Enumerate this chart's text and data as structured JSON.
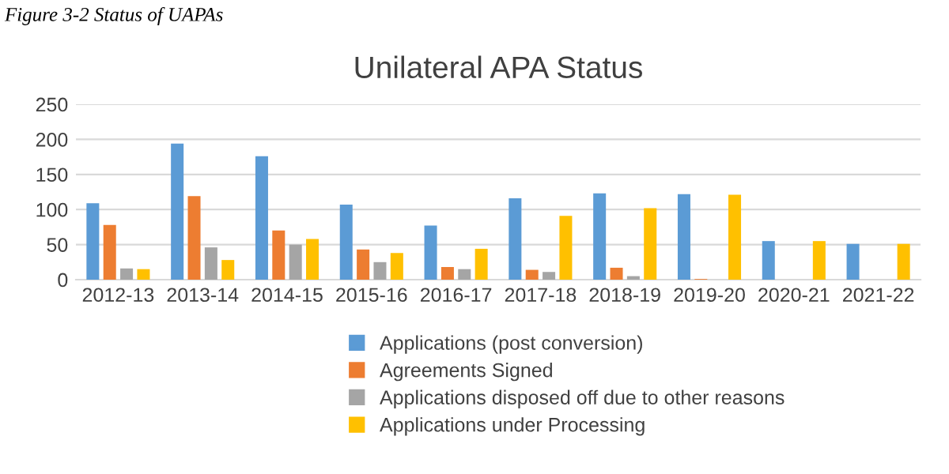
{
  "chart_data": {
    "type": "bar",
    "title": "Unilateral APA Status",
    "subtitle": "Figure 3-2 Status of UAPAs",
    "categories": [
      "2012-13",
      "2013-14",
      "2014-15",
      "2015-16",
      "2016-17",
      "2017-18",
      "2018-19",
      "2019-20",
      "2020-21",
      "2021-22"
    ],
    "series": [
      {
        "name": "Applications (post conversion)",
        "color": "#5b9bd5",
        "values": [
          109,
          194,
          176,
          107,
          77,
          116,
          123,
          122,
          55,
          51
        ]
      },
      {
        "name": "Agreements Signed",
        "color": "#ed7d31",
        "values": [
          78,
          119,
          70,
          43,
          18,
          14,
          17,
          1,
          0,
          0
        ]
      },
      {
        "name": "Applications disposed off due to other reasons",
        "color": "#a5a5a5",
        "values": [
          16,
          46,
          50,
          25,
          15,
          11,
          5,
          0,
          0,
          0
        ]
      },
      {
        "name": "Applications under Processing",
        "color": "#ffc000",
        "values": [
          15,
          28,
          58,
          38,
          44,
          91,
          102,
          121,
          55,
          51
        ]
      }
    ],
    "ylim": [
      0,
      250
    ],
    "yticks": [
      0,
      50,
      100,
      150,
      200,
      250
    ],
    "grid": "y",
    "legend": "bottom"
  }
}
